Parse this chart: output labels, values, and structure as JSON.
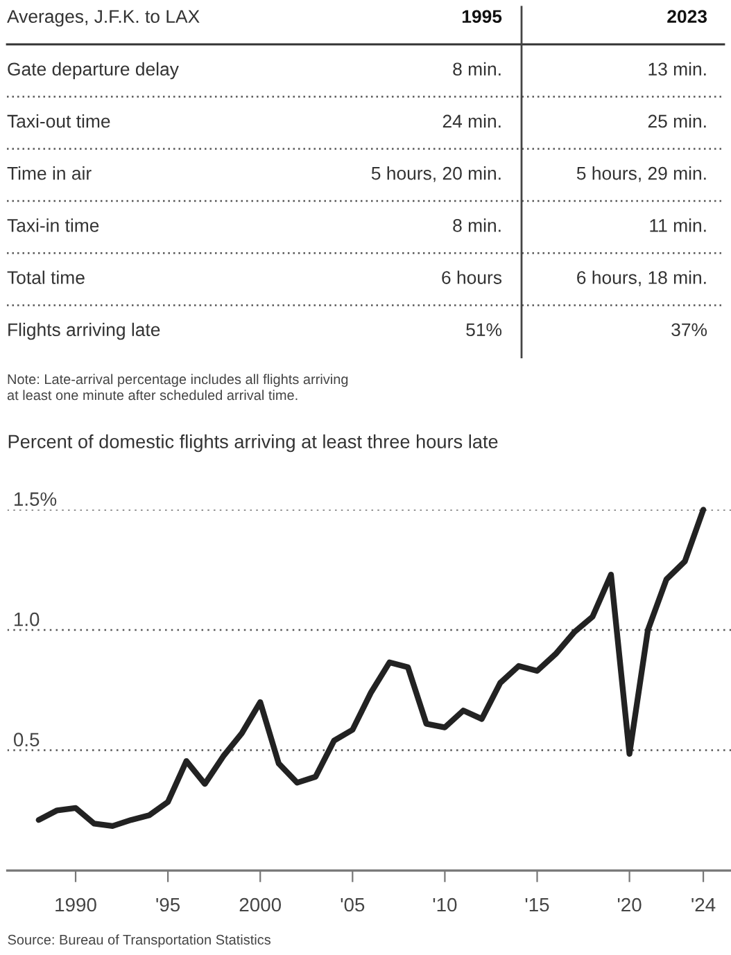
{
  "chart_data": [
    {
      "type": "other",
      "title": "Averages, J.F.K. to LAX",
      "categories": [
        "1995",
        "2023"
      ],
      "y_categories": [
        "Gate departure delay",
        "Taxi-out time",
        "Time in air",
        "Taxi-in time",
        "Total time",
        "Flights arriving late"
      ],
      "cell_labels": [
        [
          "8 min.",
          "13 min."
        ],
        [
          "24 min.",
          "25 min."
        ],
        [
          "5 hours, 20 min.",
          "5 hours, 29 min."
        ],
        [
          "8 min.",
          "11 min."
        ],
        [
          "6 hours",
          "6 hours, 18 min."
        ],
        [
          "51%",
          "37%"
        ]
      ],
      "annotations": [
        "Note: Late-arrival percentage includes all flights arriving\nat least one minute after scheduled arrival time."
      ]
    },
    {
      "type": "line",
      "title": "Percent of domestic flights arriving at least three hours late",
      "x": [
        1988,
        1989,
        1990,
        1991,
        1992,
        1993,
        1994,
        1995,
        1996,
        1997,
        1998,
        1999,
        2000,
        2001,
        2002,
        2003,
        2004,
        2005,
        2006,
        2007,
        2008,
        2009,
        2010,
        2011,
        2012,
        2013,
        2014,
        2015,
        2016,
        2017,
        2018,
        2019,
        2020,
        2021,
        2022,
        2023,
        2024
      ],
      "series": [
        {
          "color": "#222222",
          "values": [
            0.21,
            0.25,
            0.26,
            0.195,
            0.185,
            0.21,
            0.23,
            0.285,
            0.455,
            0.36,
            0.475,
            0.57,
            0.7,
            0.445,
            0.365,
            0.39,
            0.54,
            0.585,
            0.74,
            0.865,
            0.845,
            0.61,
            0.595,
            0.665,
            0.63,
            0.78,
            0.85,
            0.83,
            0.9,
            0.99,
            1.055,
            1.23,
            0.485,
            1.0,
            1.21,
            1.285,
            1.5
          ]
        }
      ],
      "xlim": [
        1986.3,
        2025.5
      ],
      "ylim": [
        0,
        1.5
      ],
      "xticks": [
        1990,
        {
          "value": 1995,
          "label": "'95"
        },
        2000,
        {
          "value": 2005,
          "label": "'05"
        },
        {
          "value": 2010,
          "label": "'10"
        },
        {
          "value": 2015,
          "label": "'15"
        },
        {
          "value": 2020,
          "label": "'20"
        },
        {
          "value": 2024,
          "label": "'24"
        }
      ],
      "yticks": [
        {
          "value": 0.5,
          "label": "0.5"
        },
        {
          "value": 1.0,
          "label": "1.0"
        },
        {
          "value": 1.5,
          "label": "1.5%"
        }
      ],
      "grid": "y",
      "line_style": "solid",
      "annotations": [
        "Source: Bureau of Transportation Statistics"
      ]
    }
  ]
}
